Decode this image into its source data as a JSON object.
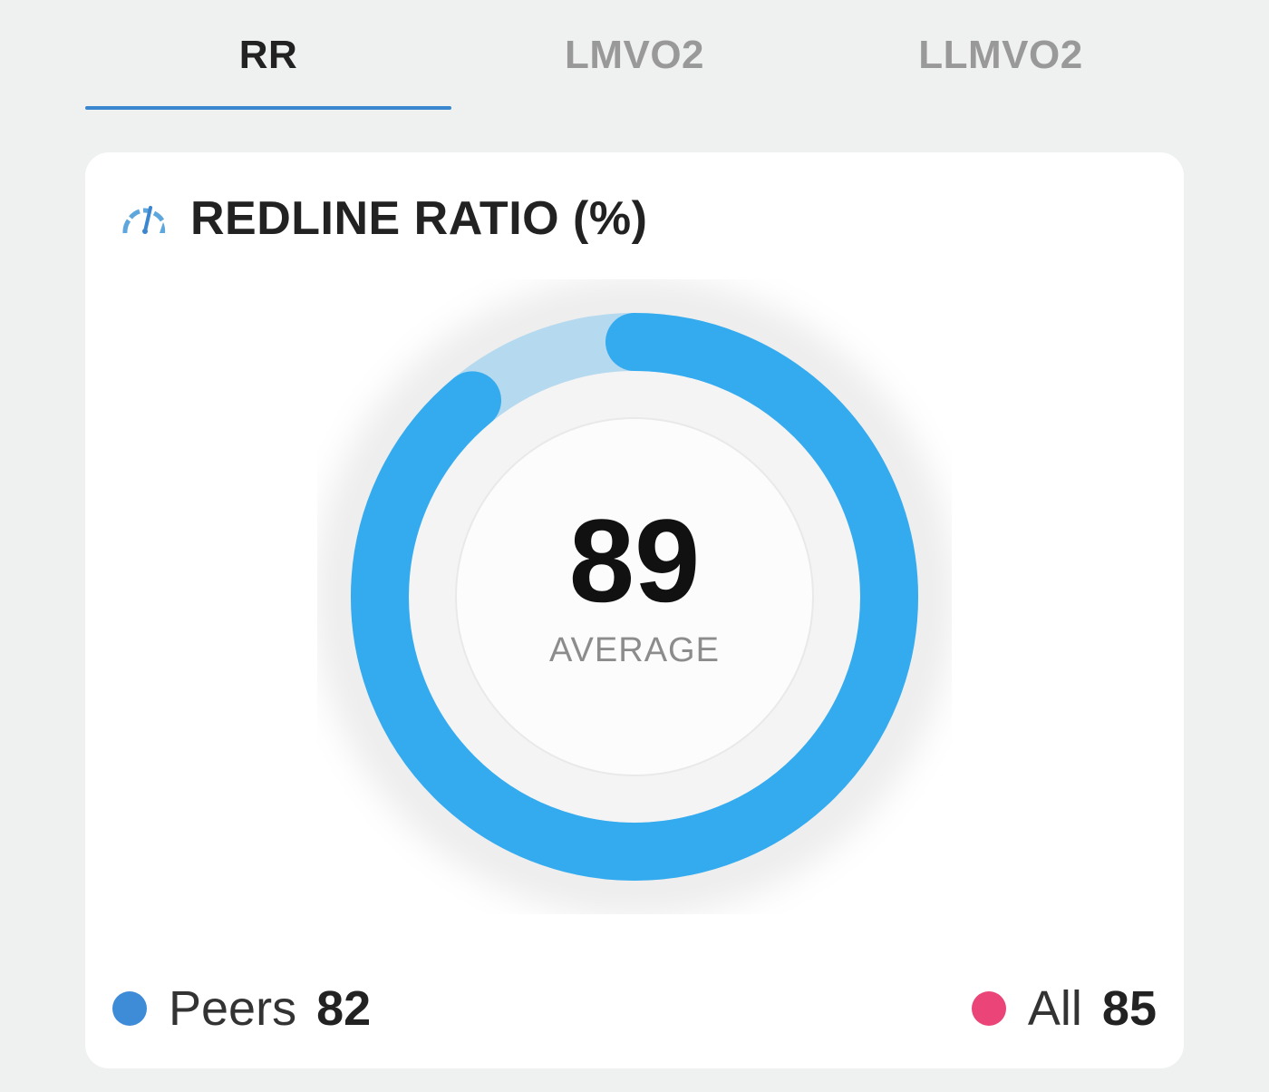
{
  "tabs": [
    {
      "label": "RR",
      "active": true
    },
    {
      "label": "LMVO2",
      "active": false
    },
    {
      "label": "LLMVO2",
      "active": false
    }
  ],
  "card": {
    "icon": "speedometer-icon",
    "title": "REDLINE RATIO (%)"
  },
  "gauge": {
    "value": "89",
    "label": "AVERAGE",
    "fill_percent": 89
  },
  "legend": {
    "peers": {
      "label": "Peers",
      "value": "82"
    },
    "all": {
      "label": "All",
      "value": "85"
    }
  },
  "colors": {
    "background": "#eff0f0",
    "accent": "#3a86cf",
    "ring_fill": "#34abef",
    "ring_track": "#b5d9ef",
    "peers_dot": "#3e8bd8",
    "all_dot": "#ea4479",
    "tab_active_text": "#222222",
    "tab_inactive_text": "#999999"
  }
}
